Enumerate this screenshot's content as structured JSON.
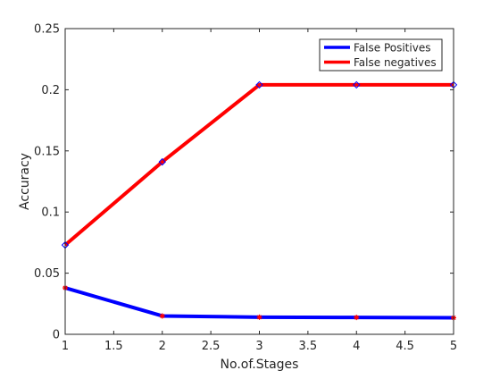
{
  "chart_data": {
    "type": "line",
    "title": "",
    "xlabel": "No.of.Stages",
    "ylabel": "Accuracy",
    "xlim": [
      1,
      5
    ],
    "ylim": [
      0,
      0.25
    ],
    "xticks": [
      1,
      1.5,
      2,
      2.5,
      3,
      3.5,
      4,
      4.5,
      5
    ],
    "xtick_labels": [
      "1",
      "1.5",
      "2",
      "2.5",
      "3",
      "3.5",
      "4",
      "4.5",
      "5"
    ],
    "yticks": [
      0,
      0.05,
      0.1,
      0.15,
      0.2,
      0.25
    ],
    "ytick_labels": [
      "0",
      "0.05",
      "0.1",
      "0.15",
      "0.2",
      "0.25"
    ],
    "grid": false,
    "legend_position": "top-right",
    "x": [
      1,
      2,
      3,
      4,
      5
    ],
    "series": [
      {
        "name": "False Positives",
        "values": [
          0.038,
          0.015,
          0.014,
          0.0138,
          0.0135
        ],
        "color": "#0000ff",
        "marker": "asterisk",
        "marker_color": "#ff0000"
      },
      {
        "name": "False negatives",
        "values": [
          0.073,
          0.141,
          0.204,
          0.204,
          0.204
        ],
        "color": "#ff0000",
        "marker": "diamond",
        "marker_color": "#0000ff"
      }
    ]
  }
}
